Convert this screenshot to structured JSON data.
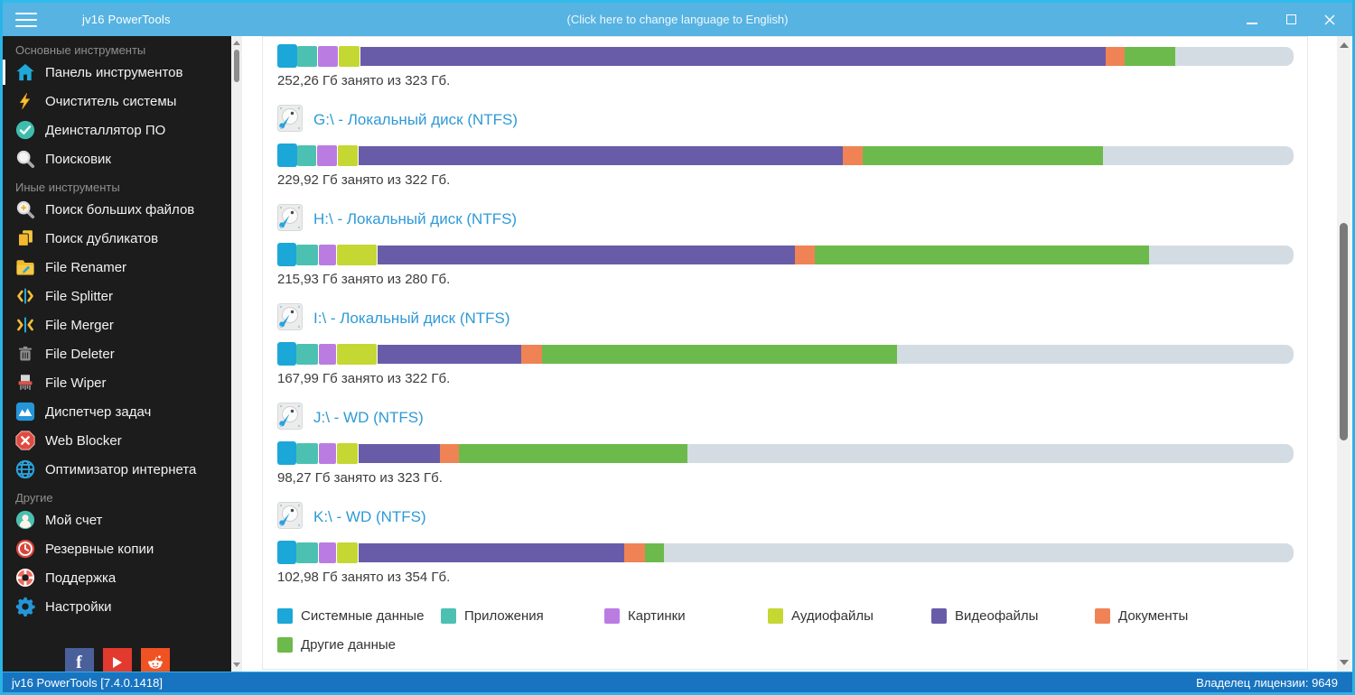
{
  "titlebar": {
    "title": "jv16 PowerTools",
    "language_link": "(Click here to change language to English)"
  },
  "statusbar": {
    "left": "jv16 PowerTools [7.4.0.1418]",
    "right": "Владелец лицензии: 9649"
  },
  "sidebar": {
    "sections": [
      {
        "label": "Основные инструменты",
        "items": [
          {
            "id": "dashboard",
            "label": "Панель инструментов",
            "icon": "home-icon",
            "selected": true
          },
          {
            "id": "system-cleaner",
            "label": "Очиститель системы",
            "icon": "lightning-icon"
          },
          {
            "id": "software-uninstaller",
            "label": "Деинсталлятор ПО",
            "icon": "check-circle-icon"
          },
          {
            "id": "finder",
            "label": "Поисковик",
            "icon": "search-icon"
          }
        ]
      },
      {
        "label": "Иные инструменты",
        "items": [
          {
            "id": "find-large-files",
            "label": "Поиск больших файлов",
            "icon": "search-plus-icon"
          },
          {
            "id": "find-duplicates",
            "label": "Поиск дубликатов",
            "icon": "duplicates-icon"
          },
          {
            "id": "file-renamer",
            "label": "File Renamer",
            "icon": "folder-edit-icon"
          },
          {
            "id": "file-splitter",
            "label": "File Splitter",
            "icon": "split-icon"
          },
          {
            "id": "file-merger",
            "label": "File Merger",
            "icon": "merge-icon"
          },
          {
            "id": "file-deleter",
            "label": "File Deleter",
            "icon": "trash-icon"
          },
          {
            "id": "file-wiper",
            "label": "File Wiper",
            "icon": "shredder-icon"
          },
          {
            "id": "task-manager",
            "label": "Диспетчер задач",
            "icon": "chart-icon"
          },
          {
            "id": "web-blocker",
            "label": "Web Blocker",
            "icon": "block-icon"
          },
          {
            "id": "internet-optimizer",
            "label": "Оптимизатор интернета",
            "icon": "globe-icon"
          }
        ]
      },
      {
        "label": "Другие",
        "items": [
          {
            "id": "my-account",
            "label": "Мой счет",
            "icon": "user-icon"
          },
          {
            "id": "backups",
            "label": "Резервные копии",
            "icon": "backup-clock-icon"
          },
          {
            "id": "support",
            "label": "Поддержка",
            "icon": "lifebuoy-icon"
          },
          {
            "id": "settings",
            "label": "Настройки",
            "icon": "gear-icon"
          }
        ]
      }
    ],
    "socials": [
      {
        "id": "facebook",
        "glyph": "f"
      },
      {
        "id": "youtube"
      },
      {
        "id": "reddit"
      }
    ]
  },
  "colors": {
    "system": "#1ba7d7",
    "apps": "#4cc1b2",
    "pictures": "#bb7ce2",
    "audio": "#c5d733",
    "video": "#685ca9",
    "documents": "#f08355",
    "other": "#6cba4b",
    "free": "#d4dce3"
  },
  "main": {
    "drives": [
      {
        "title": null,
        "usage": "252,26 Гб занято из 323 Гб.",
        "segments": [
          [
            "system",
            1.95
          ],
          [
            "apps",
            1.95
          ],
          [
            "pictures",
            2.0
          ],
          [
            "audio",
            2.0
          ],
          [
            "video",
            73.3
          ],
          [
            "documents",
            1.95
          ],
          [
            "other",
            4.9
          ]
        ]
      },
      {
        "title": "G:\\ - Локальный диск (NTFS)",
        "usage": "229,92 Гб занято из 322 Гб.",
        "segments": [
          [
            "system",
            1.95
          ],
          [
            "apps",
            1.9
          ],
          [
            "pictures",
            1.95
          ],
          [
            "audio",
            1.95
          ],
          [
            "video",
            47.6
          ],
          [
            "documents",
            2.0
          ],
          [
            "other",
            23.6
          ]
        ]
      },
      {
        "title": "H:\\ - Локальный диск (NTFS)",
        "usage": "215,93 Гб занято из 280 Гб.",
        "segments": [
          [
            "system",
            1.9
          ],
          [
            "apps",
            2.1
          ],
          [
            "pictures",
            1.7
          ],
          [
            "audio",
            3.9
          ],
          [
            "video",
            41.1
          ],
          [
            "documents",
            1.9
          ],
          [
            "other",
            32.9
          ]
        ]
      },
      {
        "title": "I:\\ - Локальный диск (NTFS)",
        "usage": "167,99 Гб занято из 322 Гб.",
        "segments": [
          [
            "system",
            1.9
          ],
          [
            "apps",
            2.1
          ],
          [
            "pictures",
            1.7
          ],
          [
            "audio",
            3.9
          ],
          [
            "video",
            14.1
          ],
          [
            "documents",
            2.1
          ],
          [
            "other",
            34.9
          ]
        ]
      },
      {
        "title": "J:\\ - WD (NTFS)",
        "usage": "98,27 Гб занято из 323 Гб.",
        "segments": [
          [
            "system",
            1.9
          ],
          [
            "apps",
            2.1
          ],
          [
            "pictures",
            1.7
          ],
          [
            "audio",
            2.0
          ],
          [
            "video",
            8.0
          ],
          [
            "documents",
            1.9
          ],
          [
            "other",
            22.5
          ]
        ]
      },
      {
        "title": "K:\\ - WD (NTFS)",
        "usage": "102,98 Гб занято из 354 Гб.",
        "segments": [
          [
            "system",
            1.9
          ],
          [
            "apps",
            2.1
          ],
          [
            "pictures",
            1.7
          ],
          [
            "audio",
            2.0
          ],
          [
            "video",
            26.2
          ],
          [
            "documents",
            2.0
          ],
          [
            "other",
            1.9
          ]
        ]
      }
    ],
    "legend": [
      {
        "key": "system",
        "label": "Системные данные"
      },
      {
        "key": "apps",
        "label": "Приложения"
      },
      {
        "key": "pictures",
        "label": "Картинки"
      },
      {
        "key": "audio",
        "label": "Аудиофайлы"
      },
      {
        "key": "video",
        "label": "Видеофайлы"
      },
      {
        "key": "documents",
        "label": "Документы"
      },
      {
        "key": "other",
        "label": "Другие данные"
      }
    ]
  }
}
